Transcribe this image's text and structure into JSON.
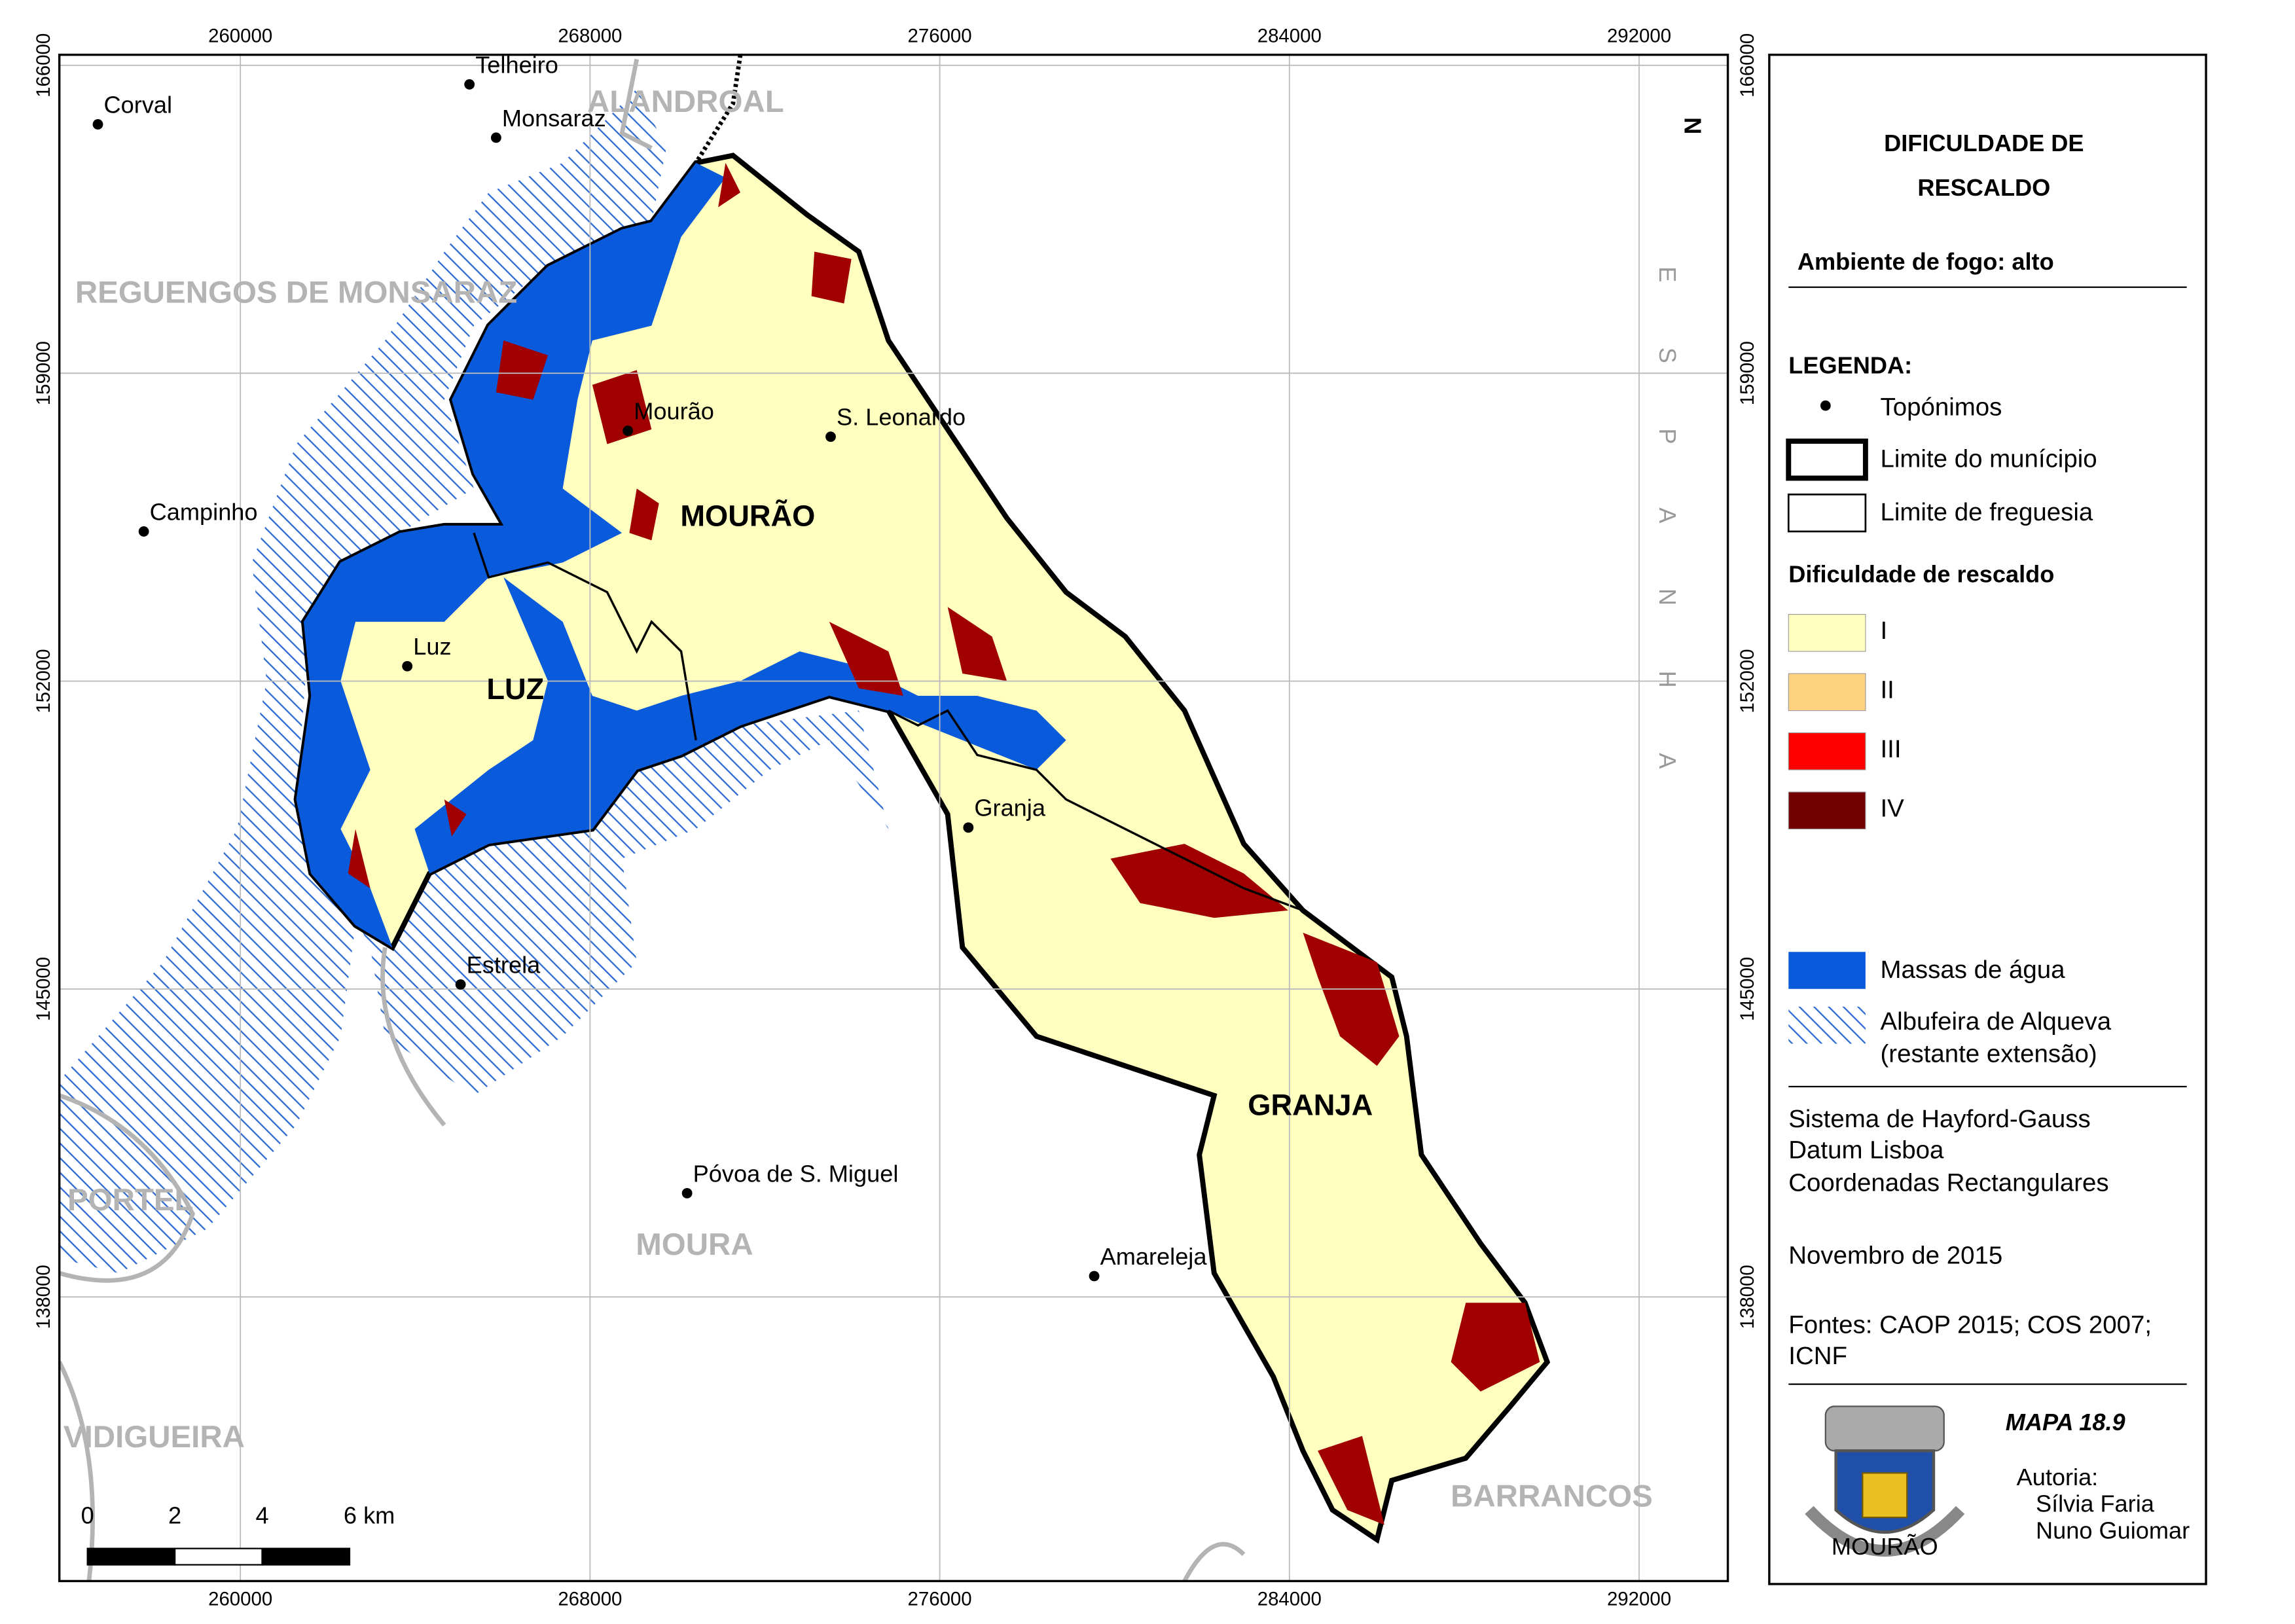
{
  "map": {
    "xlim": [
      255860,
      294030
    ],
    "ylim": [
      131540,
      166240
    ],
    "xticks": [
      260000,
      268000,
      276000,
      284000,
      292000
    ],
    "yticks": [
      138000,
      145000,
      152000,
      159000,
      166000
    ],
    "grid": true,
    "places": [
      "Corval",
      "Telheiro",
      "Monsaraz",
      "Mourão",
      "S. Leonardo",
      "Campinho",
      "Luz",
      "Granja",
      "Estrela",
      "Póvoa de S. Miguel",
      "Amareleja"
    ],
    "parishes": [
      "MOURÃO",
      "LUZ",
      "GRANJA"
    ],
    "municipalities": [
      "ALANDROAL",
      "REGUENGOS DE MONSARAZ",
      "PORTEL",
      "MOURA",
      "VIDIGUEIRA",
      "BARRANCOS"
    ],
    "country": "ESPANHA",
    "north": "N",
    "scalebar": [
      0,
      2,
      4,
      {
        "value": 6,
        "label": "6 km"
      }
    ]
  },
  "panel": {
    "title": [
      "DIFICULDADE DE",
      "RESCALDO"
    ],
    "subtitle": "Ambiente de fogo: alto",
    "legend_heading": "LEGENDA:",
    "toponyms": "Topónimos",
    "municipality_limit": "Limite do munícipio",
    "parish_limit": "Limite de freguesia",
    "class_heading": "Dificuldade de rescaldo",
    "classes": [
      {
        "label": "I",
        "color": "#ffffc0"
      },
      {
        "label": "II",
        "color": "#ffd280"
      },
      {
        "label": "III",
        "color": "#ff0000"
      },
      {
        "label": "IV",
        "color": "#730000"
      }
    ],
    "water": {
      "label": "Massas de água",
      "color": "#0a5adc"
    },
    "reservoir": {
      "label": [
        "Albufeira de Alqueva",
        "(restante extensão)"
      ],
      "color": "#2a6ad0"
    },
    "projection": [
      "Sistema de Hayford-Gauss",
      "Datum Lisboa",
      "Coordenadas Rectangulares"
    ],
    "date": "Novembro de 2015",
    "sources": [
      "Fontes: CAOP 2015; COS 2007;",
      "ICNF"
    ],
    "map_id": "MAPA 18.9",
    "author_heading": "Autoria:",
    "authors": [
      "Sílvia Faria",
      "Nuno Guiomar"
    ],
    "crest": "MOURÃO"
  }
}
